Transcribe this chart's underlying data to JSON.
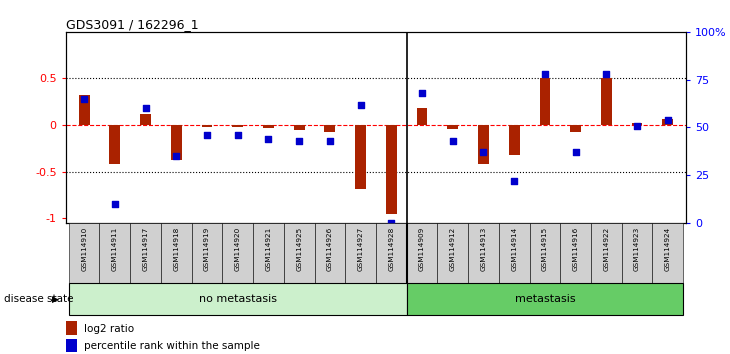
{
  "title": "GDS3091 / 162296_1",
  "samples": [
    "GSM114910",
    "GSM114911",
    "GSM114917",
    "GSM114918",
    "GSM114919",
    "GSM114920",
    "GSM114921",
    "GSM114925",
    "GSM114926",
    "GSM114927",
    "GSM114928",
    "GSM114909",
    "GSM114912",
    "GSM114913",
    "GSM114914",
    "GSM114915",
    "GSM114916",
    "GSM114922",
    "GSM114923",
    "GSM114924"
  ],
  "log2_ratio": [
    0.32,
    -0.42,
    0.12,
    -0.37,
    -0.02,
    -0.02,
    -0.03,
    -0.05,
    -0.07,
    -0.68,
    -0.95,
    0.18,
    -0.04,
    -0.42,
    -0.32,
    0.5,
    -0.07,
    0.5,
    0.02,
    0.07
  ],
  "percentile": [
    0.65,
    0.1,
    0.6,
    0.35,
    0.46,
    0.46,
    0.44,
    0.43,
    0.43,
    0.62,
    0.0,
    0.68,
    0.43,
    0.37,
    0.22,
    0.78,
    0.37,
    0.78,
    0.51,
    0.54
  ],
  "group_labels": [
    "no metastasis",
    "metastasis"
  ],
  "group_sizes": [
    11,
    9
  ],
  "group_colors_no": "#ccf0cc",
  "group_colors_meta": "#66cc66",
  "bar_color": "#aa2200",
  "dot_color": "#0000cc",
  "ylim_left": [
    -1.05,
    1.0
  ],
  "ylim_right": [
    0,
    100
  ],
  "yticks_left": [
    -1.0,
    -0.5,
    0.0,
    0.5
  ],
  "ytick_labels_left": [
    "-1",
    "-0.5",
    "0",
    "0.5"
  ],
  "yticks_right": [
    0,
    25,
    50,
    75,
    100
  ],
  "ytick_labels_right": [
    "0",
    "25",
    "50",
    "75",
    "100%"
  ],
  "hlines_dotted": [
    -0.5,
    0.5
  ],
  "disease_state_label": "disease state"
}
